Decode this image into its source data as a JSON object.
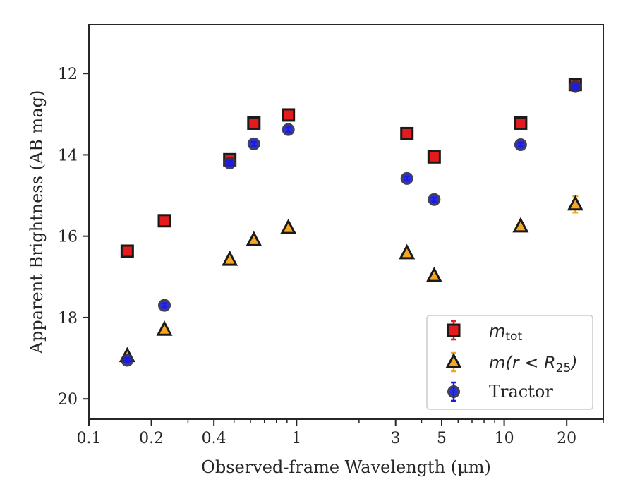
{
  "chart_data": {
    "type": "scatter",
    "xlabel": "Observed-frame Wavelength (μm)",
    "ylabel": "Apparent Brightness (AB mag)",
    "xscale": "log",
    "xlim": [
      0.1,
      30
    ],
    "ylim": [
      20.5,
      10.8
    ],
    "y_inverted": true,
    "x_ticks": [
      0.1,
      0.2,
      0.4,
      1,
      3,
      5,
      10,
      20
    ],
    "x_tick_labels": [
      "0.1",
      "0.2",
      "0.4",
      "1",
      "3",
      "5",
      "10",
      "20"
    ],
    "y_ticks": [
      12,
      14,
      16,
      18,
      20
    ],
    "y_tick_labels": [
      "12",
      "14",
      "16",
      "18",
      "20"
    ],
    "grid": false,
    "legend_position": "lower-right",
    "series": [
      {
        "name": "m_tot",
        "label_main": "m",
        "label_sub": "tot",
        "marker": "square",
        "color": "#e41a1c",
        "errbar_color": "#e41a1c",
        "x": [
          0.153,
          0.231,
          0.477,
          0.623,
          0.913,
          3.4,
          4.6,
          12.0,
          22.0
        ],
        "y": [
          16.37,
          15.62,
          14.12,
          13.22,
          13.02,
          13.48,
          14.05,
          13.22,
          12.27
        ],
        "yerr": [
          0.05,
          0.05,
          0.05,
          0.05,
          0.05,
          0.05,
          0.05,
          0.05,
          0.05
        ]
      },
      {
        "name": "m(r < R_25)",
        "label_main": "m(r < R",
        "label_sub": "25",
        "label_end": ")",
        "marker": "triangle",
        "color": "#f5a623",
        "errbar_color": "#f5a623",
        "x": [
          0.153,
          0.231,
          0.477,
          0.623,
          0.913,
          3.4,
          4.6,
          12.0,
          22.0
        ],
        "y": [
          18.95,
          18.3,
          16.58,
          16.1,
          15.8,
          16.42,
          16.98,
          15.76,
          15.22
        ],
        "yerr": [
          0.05,
          0.05,
          0.05,
          0.05,
          0.05,
          0.05,
          0.05,
          0.05,
          0.2
        ]
      },
      {
        "name": "Tractor",
        "marker": "circle",
        "color": "#1c1ce0",
        "errbar_color": "#1c1ce0",
        "x": [
          0.153,
          0.231,
          0.477,
          0.623,
          0.913,
          3.4,
          4.6,
          12.0,
          22.0
        ],
        "y": [
          19.05,
          17.7,
          14.2,
          13.73,
          13.38,
          14.58,
          15.1,
          13.75,
          12.32
        ],
        "yerr": [
          0.05,
          0.05,
          0.05,
          0.05,
          0.05,
          0.05,
          0.05,
          0.05,
          0.05
        ]
      }
    ]
  }
}
